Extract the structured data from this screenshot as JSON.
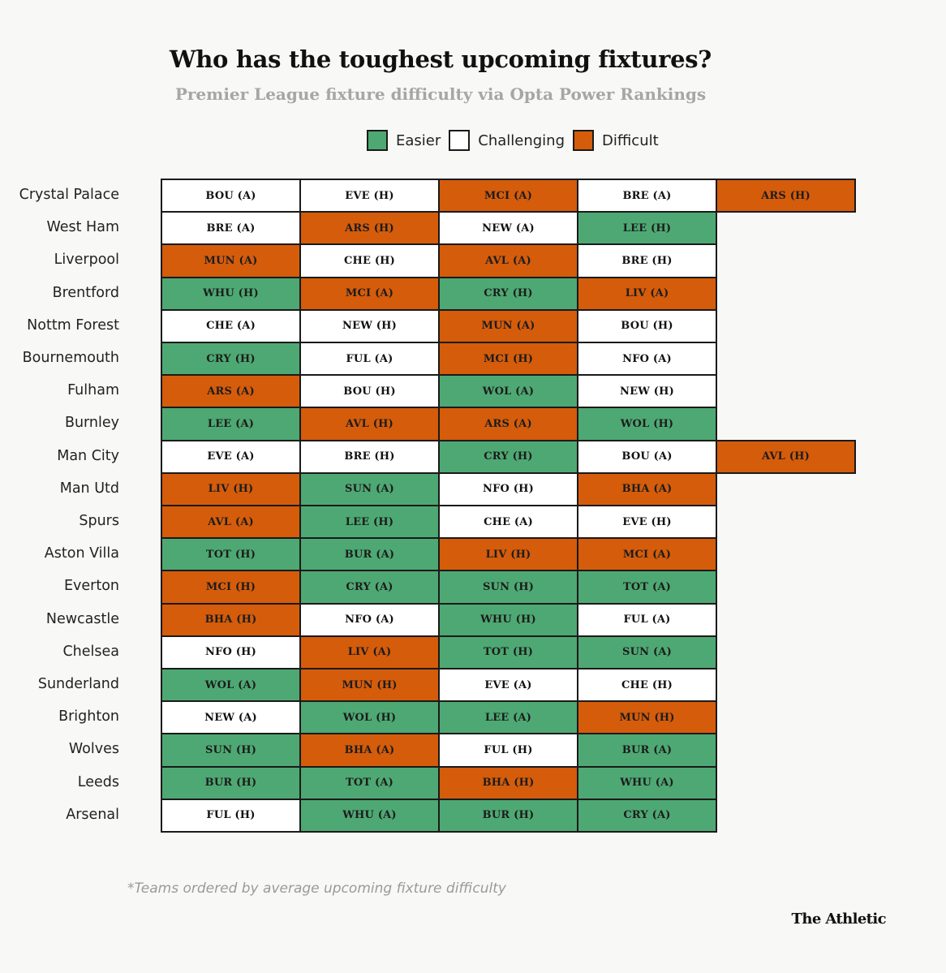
{
  "header": {
    "title": "Who has the toughest upcoming fixtures?",
    "subtitle": "Premier League fixture difficulty via Opta Power Rankings"
  },
  "legend": [
    {
      "key": "easier",
      "label": "Easier",
      "color": "#4ea873"
    },
    {
      "key": "challenging",
      "label": "Challenging",
      "color": "#ffffff"
    },
    {
      "key": "difficult",
      "label": "Difficult",
      "color": "#d45c0b"
    }
  ],
  "footer": {
    "note": "*Teams ordered by average upcoming fixture difficulty",
    "brand": "The Athletic"
  },
  "chart_data": {
    "type": "table",
    "difficulty_colors": {
      "easier": "#4ea873",
      "challenging": "#ffffff",
      "difficult": "#d45c0b"
    },
    "rows": [
      {
        "team": "Crystal Palace",
        "fixtures": [
          {
            "opp": "BOU (A)",
            "level": "challenging"
          },
          {
            "opp": "EVE (H)",
            "level": "challenging"
          },
          {
            "opp": "MCI (A)",
            "level": "difficult"
          },
          {
            "opp": "BRE (A)",
            "level": "challenging"
          },
          {
            "opp": "ARS (H)",
            "level": "difficult"
          }
        ]
      },
      {
        "team": "West Ham",
        "fixtures": [
          {
            "opp": "BRE (A)",
            "level": "challenging"
          },
          {
            "opp": "ARS (H)",
            "level": "difficult"
          },
          {
            "opp": "NEW (A)",
            "level": "challenging"
          },
          {
            "opp": "LEE (H)",
            "level": "easier"
          }
        ]
      },
      {
        "team": "Liverpool",
        "fixtures": [
          {
            "opp": "MUN (A)",
            "level": "difficult"
          },
          {
            "opp": "CHE (H)",
            "level": "challenging"
          },
          {
            "opp": "AVL (A)",
            "level": "difficult"
          },
          {
            "opp": "BRE (H)",
            "level": "challenging"
          }
        ]
      },
      {
        "team": "Brentford",
        "fixtures": [
          {
            "opp": "WHU (H)",
            "level": "easier"
          },
          {
            "opp": "MCI (A)",
            "level": "difficult"
          },
          {
            "opp": "CRY (H)",
            "level": "easier"
          },
          {
            "opp": "LIV (A)",
            "level": "difficult"
          }
        ]
      },
      {
        "team": "Nottm Forest",
        "fixtures": [
          {
            "opp": "CHE (A)",
            "level": "challenging"
          },
          {
            "opp": "NEW (H)",
            "level": "challenging"
          },
          {
            "opp": "MUN (A)",
            "level": "difficult"
          },
          {
            "opp": "BOU (H)",
            "level": "challenging"
          }
        ]
      },
      {
        "team": "Bournemouth",
        "fixtures": [
          {
            "opp": "CRY (H)",
            "level": "easier"
          },
          {
            "opp": "FUL (A)",
            "level": "challenging"
          },
          {
            "opp": "MCI (H)",
            "level": "difficult"
          },
          {
            "opp": "NFO (A)",
            "level": "challenging"
          }
        ]
      },
      {
        "team": "Fulham",
        "fixtures": [
          {
            "opp": "ARS (A)",
            "level": "difficult"
          },
          {
            "opp": "BOU (H)",
            "level": "challenging"
          },
          {
            "opp": "WOL (A)",
            "level": "easier"
          },
          {
            "opp": "NEW (H)",
            "level": "challenging"
          }
        ]
      },
      {
        "team": "Burnley",
        "fixtures": [
          {
            "opp": "LEE (A)",
            "level": "easier"
          },
          {
            "opp": "AVL (H)",
            "level": "difficult"
          },
          {
            "opp": "ARS (A)",
            "level": "difficult"
          },
          {
            "opp": "WOL (H)",
            "level": "easier"
          }
        ]
      },
      {
        "team": "Man City",
        "fixtures": [
          {
            "opp": "EVE (A)",
            "level": "challenging"
          },
          {
            "opp": "BRE (H)",
            "level": "challenging"
          },
          {
            "opp": "CRY (H)",
            "level": "easier"
          },
          {
            "opp": "BOU (A)",
            "level": "challenging"
          },
          {
            "opp": "AVL (H)",
            "level": "difficult"
          }
        ]
      },
      {
        "team": "Man Utd",
        "fixtures": [
          {
            "opp": "LIV (H)",
            "level": "difficult"
          },
          {
            "opp": "SUN (A)",
            "level": "easier"
          },
          {
            "opp": "NFO (H)",
            "level": "challenging"
          },
          {
            "opp": "BHA (A)",
            "level": "difficult"
          }
        ]
      },
      {
        "team": "Spurs",
        "fixtures": [
          {
            "opp": "AVL (A)",
            "level": "difficult"
          },
          {
            "opp": "LEE (H)",
            "level": "easier"
          },
          {
            "opp": "CHE (A)",
            "level": "challenging"
          },
          {
            "opp": "EVE (H)",
            "level": "challenging"
          }
        ]
      },
      {
        "team": "Aston Villa",
        "fixtures": [
          {
            "opp": "TOT (H)",
            "level": "easier"
          },
          {
            "opp": "BUR (A)",
            "level": "easier"
          },
          {
            "opp": "LIV (H)",
            "level": "difficult"
          },
          {
            "opp": "MCI (A)",
            "level": "difficult"
          }
        ]
      },
      {
        "team": "Everton",
        "fixtures": [
          {
            "opp": "MCI (H)",
            "level": "difficult"
          },
          {
            "opp": "CRY (A)",
            "level": "easier"
          },
          {
            "opp": "SUN (H)",
            "level": "easier"
          },
          {
            "opp": "TOT (A)",
            "level": "easier"
          }
        ]
      },
      {
        "team": "Newcastle",
        "fixtures": [
          {
            "opp": "BHA (H)",
            "level": "difficult"
          },
          {
            "opp": "NFO (A)",
            "level": "challenging"
          },
          {
            "opp": "WHU (H)",
            "level": "easier"
          },
          {
            "opp": "FUL (A)",
            "level": "challenging"
          }
        ]
      },
      {
        "team": "Chelsea",
        "fixtures": [
          {
            "opp": "NFO (H)",
            "level": "challenging"
          },
          {
            "opp": "LIV (A)",
            "level": "difficult"
          },
          {
            "opp": "TOT (H)",
            "level": "easier"
          },
          {
            "opp": "SUN (A)",
            "level": "easier"
          }
        ]
      },
      {
        "team": "Sunderland",
        "fixtures": [
          {
            "opp": "WOL (A)",
            "level": "easier"
          },
          {
            "opp": "MUN (H)",
            "level": "difficult"
          },
          {
            "opp": "EVE (A)",
            "level": "challenging"
          },
          {
            "opp": "CHE (H)",
            "level": "challenging"
          }
        ]
      },
      {
        "team": "Brighton",
        "fixtures": [
          {
            "opp": "NEW (A)",
            "level": "challenging"
          },
          {
            "opp": "WOL (H)",
            "level": "easier"
          },
          {
            "opp": "LEE (A)",
            "level": "easier"
          },
          {
            "opp": "MUN (H)",
            "level": "difficult"
          }
        ]
      },
      {
        "team": "Wolves",
        "fixtures": [
          {
            "opp": "SUN (H)",
            "level": "easier"
          },
          {
            "opp": "BHA (A)",
            "level": "difficult"
          },
          {
            "opp": "FUL (H)",
            "level": "challenging"
          },
          {
            "opp": "BUR (A)",
            "level": "easier"
          }
        ]
      },
      {
        "team": "Leeds",
        "fixtures": [
          {
            "opp": "BUR (H)",
            "level": "easier"
          },
          {
            "opp": "TOT (A)",
            "level": "easier"
          },
          {
            "opp": "BHA (H)",
            "level": "difficult"
          },
          {
            "opp": "WHU (A)",
            "level": "easier"
          }
        ]
      },
      {
        "team": "Arsenal",
        "fixtures": [
          {
            "opp": "FUL (H)",
            "level": "challenging"
          },
          {
            "opp": "WHU (A)",
            "level": "easier"
          },
          {
            "opp": "BUR (H)",
            "level": "easier"
          },
          {
            "opp": "CRY (A)",
            "level": "easier"
          }
        ]
      }
    ]
  }
}
